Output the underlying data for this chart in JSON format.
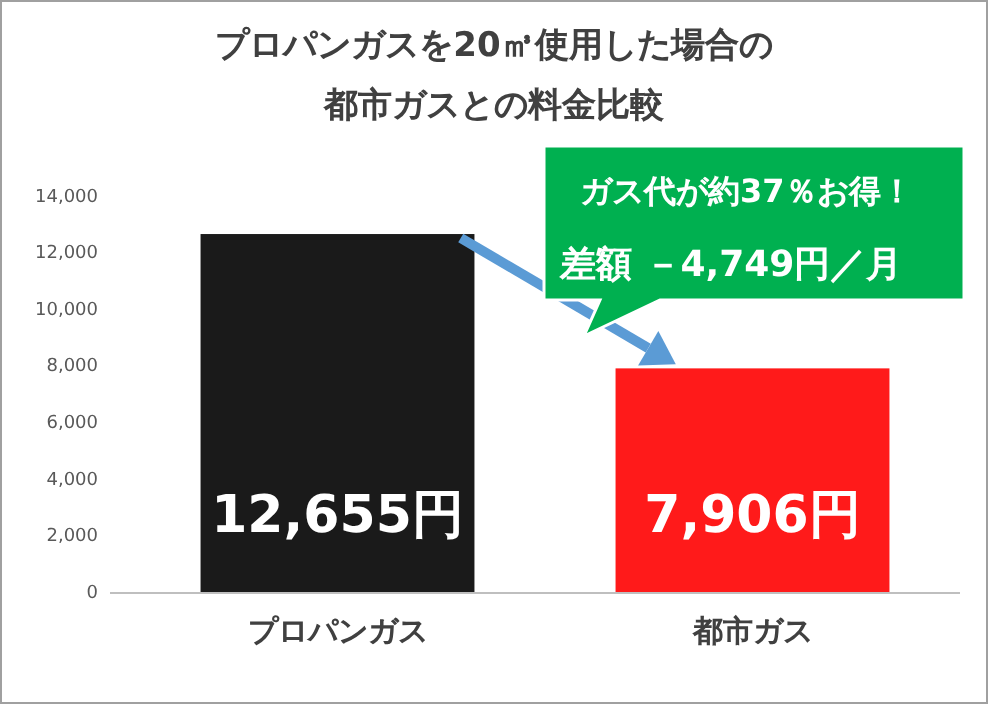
{
  "chart_data": {
    "type": "bar",
    "title": "プロパンガスを20㎥使用した場合の都市ガスとの料金比較",
    "categories": [
      "プロパンガス",
      "都市ガス"
    ],
    "values": [
      12655,
      7906
    ],
    "colors": [
      "#1a1a1a",
      "#ff1a1a"
    ],
    "value_labels": [
      "12,655円",
      "7,906円"
    ],
    "ylim": [
      0,
      14000
    ],
    "yticks": [
      {
        "value": 0,
        "label": "0"
      },
      {
        "value": 2000,
        "label": "2,000"
      },
      {
        "value": 4000,
        "label": "4,000"
      },
      {
        "value": 6000,
        "label": "6,000"
      },
      {
        "value": 8000,
        "label": "8,000"
      },
      {
        "value": 10000,
        "label": "10,000"
      },
      {
        "value": 12000,
        "label": "12,000"
      },
      {
        "value": 14000,
        "label": "14,000"
      }
    ],
    "grid": false,
    "annotations": [
      "ガス代が約37％お得！",
      "差額 －4,749円／月"
    ]
  }
}
